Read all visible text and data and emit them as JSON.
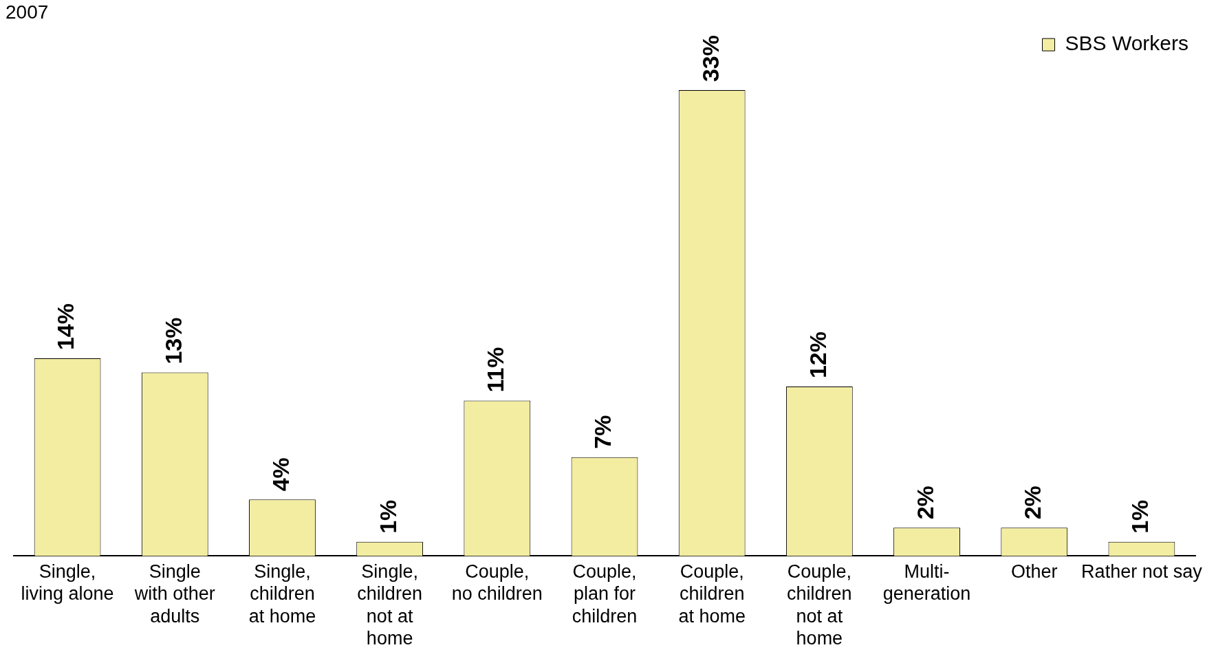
{
  "chart_data": {
    "type": "bar",
    "title": "2007",
    "categories": [
      "Single,\nliving alone",
      "Single\nwith other\nadults",
      "Single,\nchildren\nat home",
      "Single,\nchildren\nnot at\nhome",
      "Couple,\nno children",
      "Couple,\nplan for\nchildren",
      "Couple,\nchildren\nat home",
      "Couple,\nchildren\nnot at\nhome",
      "Multi-\ngeneration",
      "Other",
      "Rather not say"
    ],
    "series": [
      {
        "name": "SBS Workers",
        "color": "#f3eda2",
        "values": [
          14,
          13,
          4,
          1,
          11,
          7,
          33,
          12,
          2,
          2,
          1
        ],
        "value_labels": [
          "14%",
          "13%",
          "4%",
          "1%",
          "11%",
          "7%",
          "33%",
          "12%",
          "2%",
          "2%",
          "1%"
        ]
      }
    ],
    "legend": "top right",
    "grid": false
  }
}
